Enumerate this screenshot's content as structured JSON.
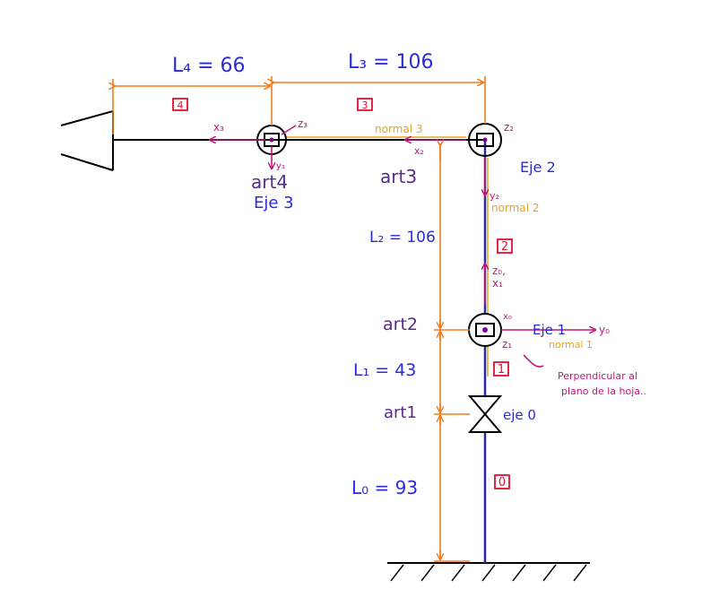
{
  "dimensions": {
    "L4": "L₄ = 66",
    "L3": "L₃ = 106",
    "L2": "L₂ = 106",
    "L1": "L₁ = 43",
    "L0": "L₀ = 93"
  },
  "link_numbers": {
    "link4": "4",
    "link3": "3",
    "link2": "2",
    "link1": "1",
    "link0": "0"
  },
  "joints": {
    "art4": "art4",
    "art3": "art3",
    "art2": "art2",
    "art1": "art1"
  },
  "axes": {
    "eje3": "Eje 3",
    "eje2": "Eje 2",
    "eje1": "Eje 1",
    "eje0": "eje 0"
  },
  "frames": {
    "x3": "x₃",
    "z3": "z₃",
    "y3": "y₃",
    "x2": "x₂",
    "z2": "z₂",
    "y2": "y₂",
    "z0x1": "z₀,",
    "x1": "x₁",
    "x0": "x₀",
    "y0": "y₀",
    "z1": "z₁"
  },
  "normals": {
    "normal3": "normal 3",
    "normal2": "normal 2",
    "normal1": "normal 1"
  },
  "note": {
    "line1": "Perpendicular al",
    "line2": "plano de la hoja.."
  },
  "colors": {
    "orange": "#f07d1e",
    "blue": "#2b2bd8",
    "magenta": "#c2187a",
    "yellow": "#e6a320",
    "red": "#e01030",
    "purple": "#5a2b8c",
    "navy": "#2a2a9a"
  }
}
